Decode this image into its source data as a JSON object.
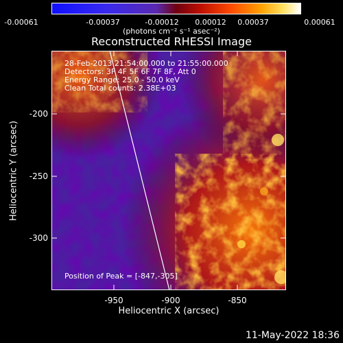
{
  "colorbar": {
    "ticks": [
      "-0.00061",
      "-0.00037",
      "-0.00012",
      "0.00012",
      "0.00037",
      "0.00061"
    ],
    "units": "(photons cm⁻² s⁻¹ asec⁻²)"
  },
  "title": "Reconstructed RHESSI Image",
  "info": {
    "time": "28-Feb-2013 21:54:00.000 to 21:55:00.000",
    "detectors": "Detectors: 3F 4F 5F 6F 7F 8F, Att 0",
    "energy": "Energy Range: 25.0 - 50.0 keV",
    "clean": "Clean     Total counts: 2.38E+03"
  },
  "peak": "Position of Peak = [-847,-305]",
  "axes": {
    "xlabel": "Heliocentric X (arcsec)",
    "ylabel": "Heliocentric Y (arcsec)",
    "xticks": [
      "-950",
      "-900",
      "-850"
    ],
    "yticks": [
      "-200",
      "-250",
      "-300"
    ]
  },
  "footer_date": "11-May-2022 18:36",
  "colors": {
    "background": "#000000",
    "limb": "#ffffff"
  }
}
